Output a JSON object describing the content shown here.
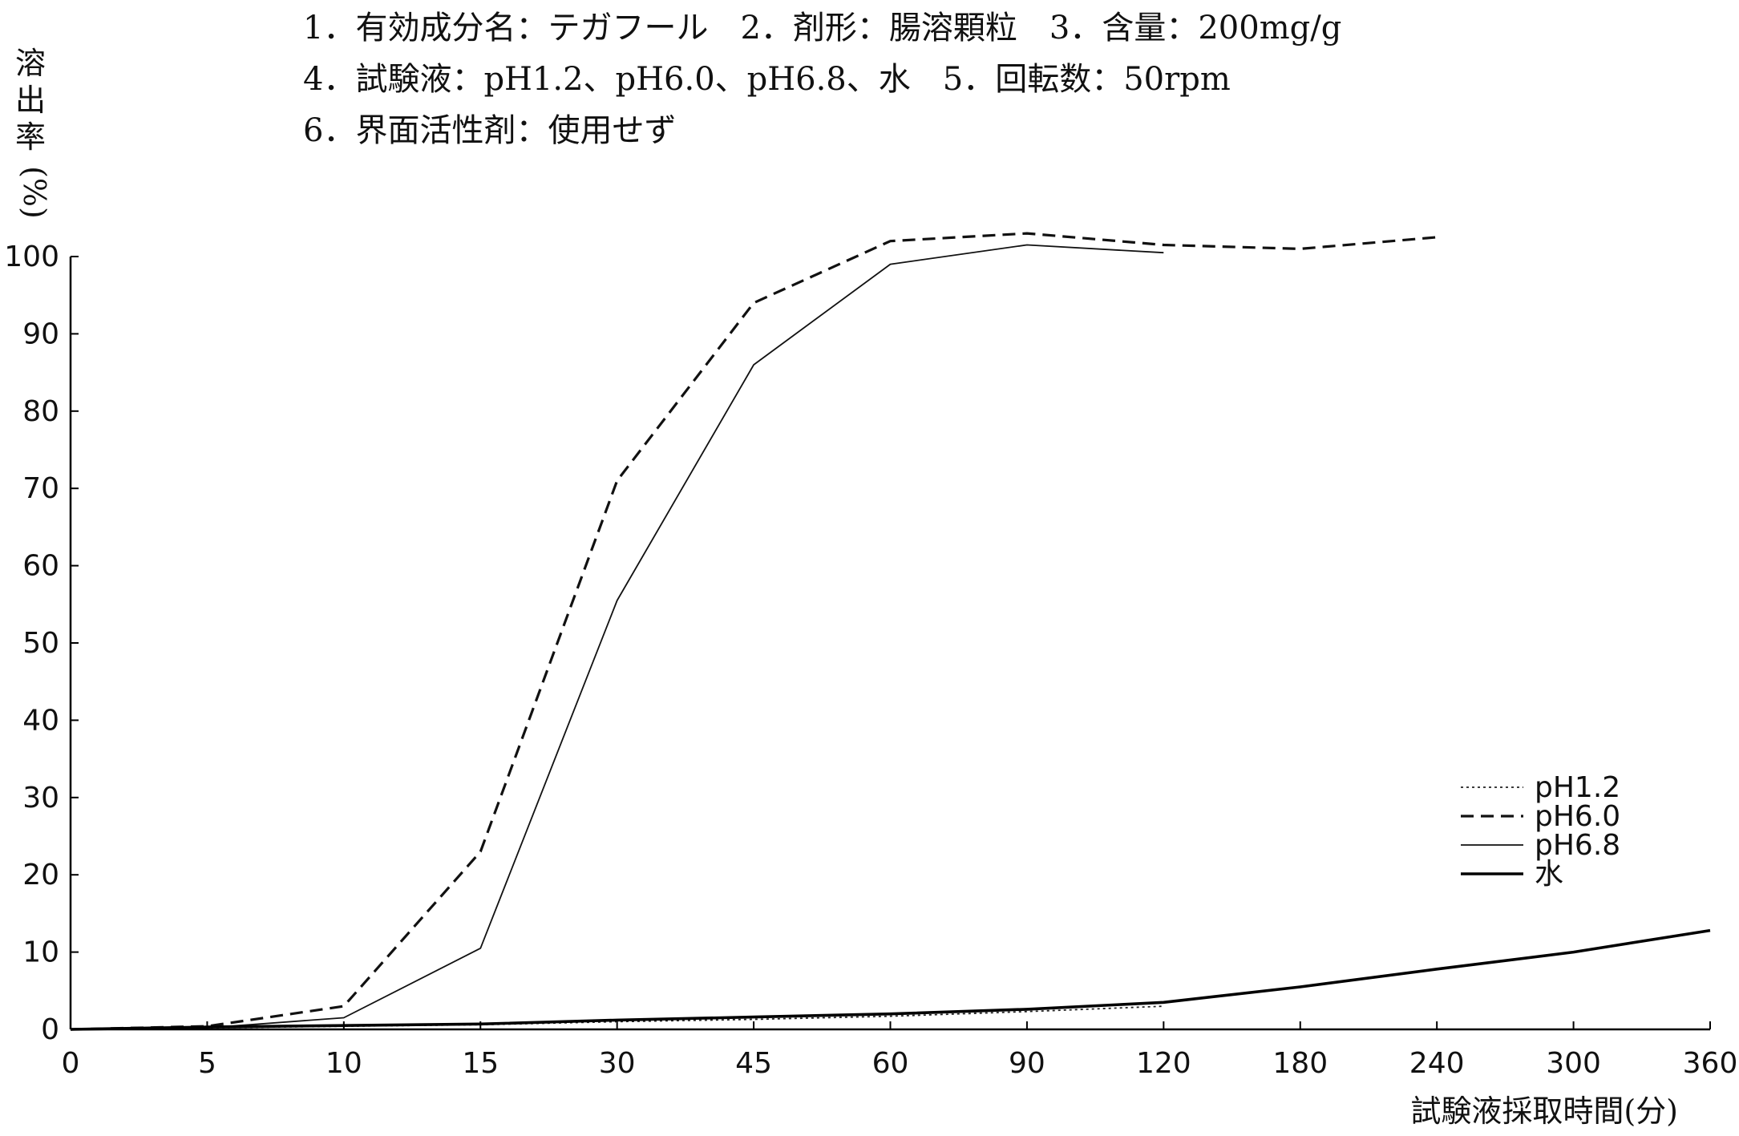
{
  "header": {
    "line1": "1．有効成分名：テガフール　2．剤形：腸溶顆粒　3．含量：200mg/g",
    "line2": "4．試験液：pH1.2、pH6.0、pH6.8、水　5．回転数：50rpm",
    "line3": "6．界面活性剤：使用せず"
  },
  "chart_data": {
    "type": "line",
    "xlabel": "試験液採取時間(分)",
    "ylabel": [
      "溶",
      "出",
      "率",
      "(%)"
    ],
    "x_categories": [
      "0",
      "5",
      "10",
      "15",
      "30",
      "45",
      "60",
      "90",
      "120",
      "180",
      "240",
      "300",
      "360"
    ],
    "ylim": [
      0,
      100
    ],
    "y_ticks": [
      0,
      10,
      20,
      30,
      40,
      50,
      60,
      70,
      80,
      90,
      100
    ],
    "legend_position": "right",
    "series": [
      {
        "name": "pH1.2",
        "style": "dotted",
        "color": "#222222",
        "x": [
          "0",
          "5",
          "10",
          "15",
          "30",
          "45",
          "60",
          "90",
          "120"
        ],
        "values": [
          0,
          0.2,
          0.4,
          0.6,
          1.0,
          1.3,
          1.7,
          2.3,
          3.0
        ]
      },
      {
        "name": "pH6.0",
        "style": "dashed",
        "color": "#111111",
        "x": [
          "0",
          "5",
          "10",
          "15",
          "30",
          "45",
          "60",
          "90",
          "120",
          "180",
          "240"
        ],
        "values": [
          0,
          0.4,
          3.0,
          23.0,
          71.0,
          94.0,
          102.0,
          103.0,
          101.5,
          101.0,
          102.5
        ]
      },
      {
        "name": "pH6.8",
        "style": "thin",
        "color": "#111111",
        "x": [
          "0",
          "5",
          "10",
          "15",
          "30",
          "45",
          "60",
          "90",
          "120"
        ],
        "values": [
          0,
          0.2,
          1.5,
          10.5,
          55.5,
          86.0,
          99.0,
          101.5,
          100.5
        ]
      },
      {
        "name": "水",
        "style": "thick",
        "color": "#000000",
        "x": [
          "0",
          "5",
          "10",
          "15",
          "30",
          "45",
          "60",
          "90",
          "120",
          "180",
          "240",
          "300",
          "360"
        ],
        "values": [
          0,
          0.3,
          0.5,
          0.7,
          1.2,
          1.6,
          2.0,
          2.6,
          3.5,
          5.5,
          7.8,
          10.0,
          12.8
        ]
      }
    ]
  }
}
